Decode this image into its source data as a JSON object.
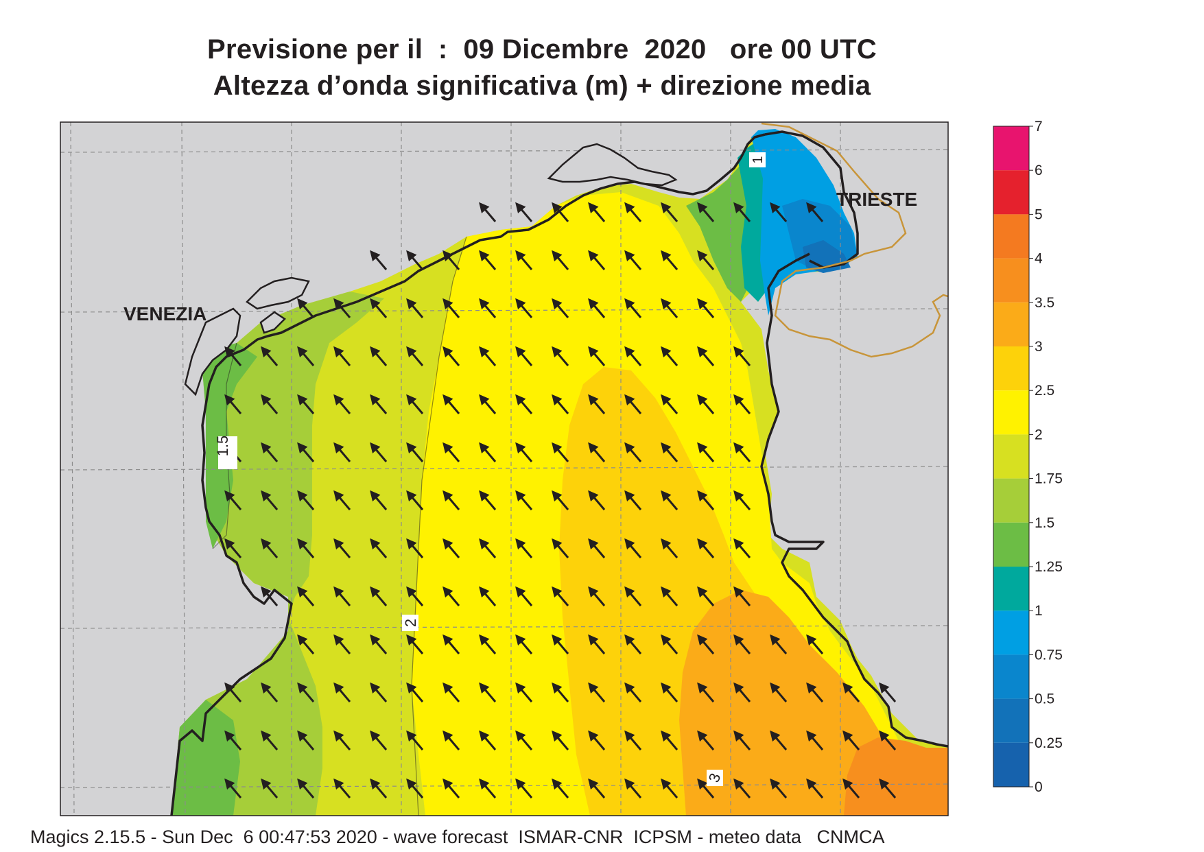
{
  "title": {
    "line1": "Previsione per il  :  09 Dicembre  2020   ore 00 UTC",
    "line2": "Altezza d’onda significativa (m) + direzione media"
  },
  "map": {
    "city_labels": [
      "VENEZIA",
      "TRIESTE"
    ],
    "contour_labels": [
      "1.5",
      "2",
      "3",
      "1"
    ],
    "arrow_direction": "north-west"
  },
  "legend": {
    "levels": [
      "7",
      "6",
      "5",
      "4",
      "3.5",
      "3",
      "2.5",
      "2",
      "1.75",
      "1.5",
      "1.25",
      "1",
      "0.75",
      "0.5",
      "0.25",
      "0"
    ],
    "colors": [
      "#e8146e",
      "#e5212d",
      "#f47a20",
      "#f78f1e",
      "#fbab18",
      "#fdd20a",
      "#fff200",
      "#d7e021",
      "#a6ce39",
      "#6cbd45",
      "#00a99d",
      "#009fe3",
      "#0a86cd",
      "#1272b9",
      "#1662ad"
    ]
  },
  "colors": {
    "land": "#d3d3d5",
    "coast": "#231f20",
    "grid": "#8c8c8c",
    "border": "#c8953a"
  },
  "footer": "Magics 2.15.5 - Sun Dec  6 00:47:53 2020 - wave forecast  ISMAR-CNR  ICPSM - meteo data   CNMCA"
}
